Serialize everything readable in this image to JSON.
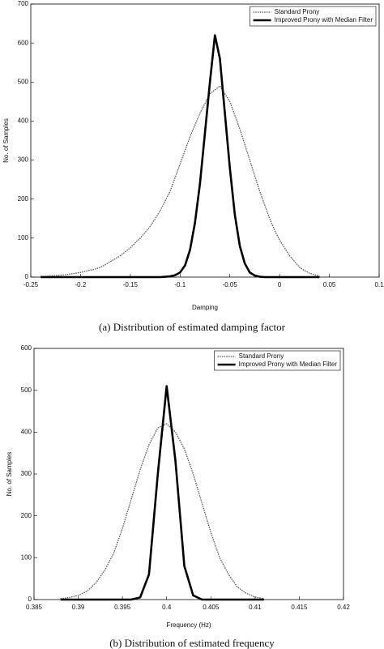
{
  "chart_data": [
    {
      "type": "line",
      "xlabel": "Damping",
      "ylabel": "No. of Samples",
      "caption": "(a) Distribution of estimated damping factor",
      "xlim": [
        -0.25,
        0.1
      ],
      "xticks": [
        -0.25,
        -0.2,
        -0.15,
        -0.1,
        -0.05,
        0,
        0.05,
        0.1
      ],
      "ylim": [
        0,
        700
      ],
      "yticks": [
        0,
        100,
        200,
        300,
        400,
        500,
        600,
        700
      ],
      "legend": "upper right",
      "x": [
        -0.24,
        -0.235,
        -0.23,
        -0.225,
        -0.22,
        -0.215,
        -0.21,
        -0.205,
        -0.2,
        -0.195,
        -0.19,
        -0.185,
        -0.18,
        -0.175,
        -0.17,
        -0.165,
        -0.16,
        -0.155,
        -0.15,
        -0.145,
        -0.14,
        -0.135,
        -0.13,
        -0.125,
        -0.12,
        -0.115,
        -0.11,
        -0.105,
        -0.1,
        -0.095,
        -0.09,
        -0.085,
        -0.08,
        -0.075,
        -0.07,
        -0.065,
        -0.06,
        -0.055,
        -0.05,
        -0.045,
        -0.04,
        -0.035,
        -0.03,
        -0.025,
        -0.02,
        -0.015,
        -0.01,
        -0.005,
        0,
        0.005,
        0.01,
        0.015,
        0.02,
        0.025,
        0.03,
        0.035,
        0.04
      ],
      "series": [
        {
          "name": "Standard Prony",
          "color": "#555555",
          "style": "dotted",
          "values": [
            2,
            2,
            3,
            4,
            5,
            6,
            8,
            10,
            12,
            15,
            18,
            21,
            25,
            32,
            40,
            47,
            55,
            65,
            75,
            88,
            100,
            115,
            130,
            150,
            170,
            195,
            220,
            255,
            290,
            325,
            360,
            390,
            420,
            445,
            470,
            480,
            490,
            470,
            450,
            415,
            380,
            340,
            300,
            260,
            220,
            185,
            150,
            120,
            95,
            75,
            55,
            40,
            25,
            17,
            10,
            6,
            3
          ]
        },
        {
          "name": "Improved Prony with Median Filter",
          "color": "#000000",
          "style": "solid",
          "values": [
            0,
            0,
            0,
            0,
            0,
            0,
            0,
            0,
            0,
            0,
            0,
            0,
            0,
            0,
            0,
            0,
            0,
            0,
            0,
            0,
            0,
            0,
            0,
            0,
            0,
            1,
            2,
            5,
            12,
            30,
            70,
            140,
            240,
            370,
            500,
            620,
            560,
            420,
            280,
            160,
            80,
            35,
            12,
            4,
            1,
            0,
            0,
            0,
            0,
            0,
            0,
            0,
            0,
            0,
            0,
            0,
            0
          ]
        }
      ]
    },
    {
      "type": "line",
      "xlabel": "Frequency (Hz)",
      "ylabel": "No. of Samples",
      "caption": "(b) Distribution of estimated frequency",
      "xlim": [
        0.385,
        0.42
      ],
      "xticks": [
        0.385,
        0.39,
        0.395,
        0.4,
        0.405,
        0.41,
        0.415,
        0.42
      ],
      "ylim": [
        0,
        600
      ],
      "yticks": [
        0,
        100,
        200,
        300,
        400,
        500,
        600
      ],
      "legend": "upper right",
      "x": [
        0.388,
        0.389,
        0.39,
        0.391,
        0.392,
        0.393,
        0.394,
        0.395,
        0.396,
        0.397,
        0.398,
        0.399,
        0.4,
        0.401,
        0.402,
        0.403,
        0.404,
        0.405,
        0.406,
        0.407,
        0.408,
        0.409,
        0.41,
        0.411
      ],
      "series": [
        {
          "name": "Standard Prony",
          "color": "#555555",
          "style": "dotted",
          "values": [
            2,
            5,
            10,
            20,
            40,
            70,
            110,
            170,
            240,
            310,
            370,
            410,
            420,
            400,
            360,
            300,
            230,
            160,
            100,
            60,
            30,
            15,
            6,
            2
          ]
        },
        {
          "name": "Improved Prony with Median Filter",
          "color": "#000000",
          "style": "solid",
          "values": [
            0,
            0,
            0,
            0,
            0,
            0,
            0,
            0,
            0,
            5,
            60,
            300,
            510,
            330,
            80,
            10,
            0,
            0,
            0,
            0,
            0,
            0,
            0,
            0
          ]
        }
      ]
    }
  ]
}
